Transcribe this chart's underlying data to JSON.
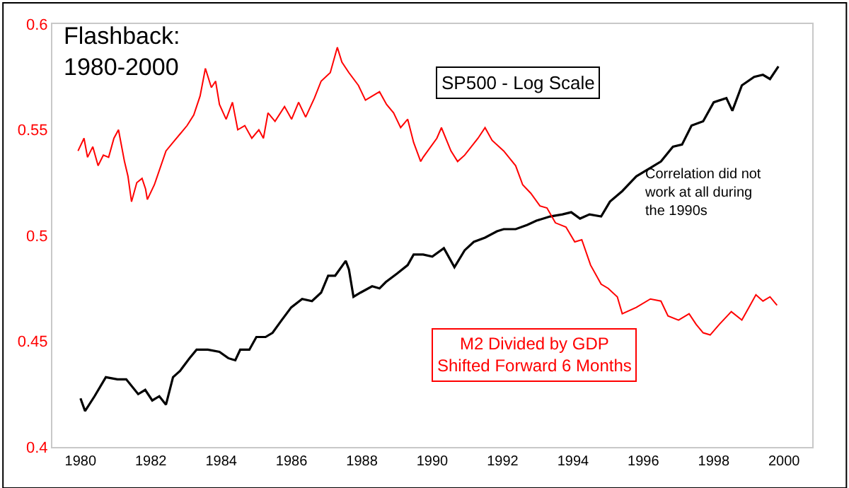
{
  "chart_data": {
    "type": "line",
    "title": "Flashback:\n1980-2000",
    "xlim": [
      1979.2,
      2000.8
    ],
    "xticks": [
      1980,
      1982,
      1984,
      1986,
      1988,
      1990,
      1992,
      1994,
      1996,
      1998,
      2000
    ],
    "ylim": [
      0.4,
      0.6
    ],
    "yticks": [
      0.4,
      0.45,
      0.5,
      0.55,
      0.6
    ],
    "legend": false,
    "marker": "none",
    "line_style": "solid",
    "annotations": [
      "Correlation did not\nwork at all during\nthe 1990s"
    ],
    "series": [
      {
        "name": "SP500 - Log Scale",
        "color": "#000000",
        "x": [
          1980.0,
          1980.13,
          1980.4,
          1980.72,
          1981.05,
          1981.3,
          1981.64,
          1981.84,
          1982.04,
          1982.24,
          1982.43,
          1982.63,
          1982.83,
          1983.1,
          1983.3,
          1983.62,
          1983.95,
          1984.2,
          1984.4,
          1984.54,
          1984.8,
          1985.0,
          1985.26,
          1985.46,
          1985.72,
          1985.99,
          1986.3,
          1986.58,
          1986.84,
          1987.04,
          1987.24,
          1987.54,
          1987.63,
          1987.76,
          1987.96,
          1988.29,
          1988.5,
          1988.68,
          1989.0,
          1989.3,
          1989.47,
          1989.74,
          1990.0,
          1990.33,
          1990.63,
          1990.92,
          1991.18,
          1991.5,
          1991.84,
          1992.03,
          1992.37,
          1992.7,
          1992.96,
          1993.35,
          1993.7,
          1993.95,
          1994.2,
          1994.47,
          1994.8,
          1995.05,
          1995.4,
          1995.8,
          1996.2,
          1996.5,
          1996.84,
          1997.1,
          1997.37,
          1997.7,
          1998.0,
          1998.36,
          1998.53,
          1998.8,
          1999.15,
          1999.4,
          1999.6,
          1999.84
        ],
        "values": [
          0.423,
          0.417,
          0.424,
          0.433,
          0.432,
          0.432,
          0.425,
          0.427,
          0.422,
          0.424,
          0.42,
          0.433,
          0.436,
          0.442,
          0.446,
          0.446,
          0.445,
          0.442,
          0.441,
          0.446,
          0.446,
          0.452,
          0.452,
          0.454,
          0.46,
          0.466,
          0.47,
          0.469,
          0.473,
          0.481,
          0.481,
          0.488,
          0.484,
          0.471,
          0.473,
          0.476,
          0.475,
          0.478,
          0.482,
          0.486,
          0.491,
          0.491,
          0.49,
          0.494,
          0.485,
          0.493,
          0.497,
          0.499,
          0.502,
          0.503,
          0.503,
          0.505,
          0.507,
          0.509,
          0.51,
          0.511,
          0.508,
          0.51,
          0.509,
          0.516,
          0.521,
          0.528,
          0.532,
          0.535,
          0.542,
          0.543,
          0.552,
          0.554,
          0.563,
          0.565,
          0.559,
          0.571,
          0.575,
          0.576,
          0.574,
          0.58
        ]
      },
      {
        "name": "M2 Divided by GDP\nShifted Forward 6 Months",
        "color": "#ff0000",
        "x": [
          1979.93,
          1980.1,
          1980.2,
          1980.35,
          1980.5,
          1980.65,
          1980.8,
          1980.95,
          1981.08,
          1981.25,
          1981.35,
          1981.45,
          1981.6,
          1981.75,
          1981.85,
          1981.9,
          1982.1,
          1982.43,
          1982.63,
          1983.03,
          1983.22,
          1983.4,
          1983.55,
          1983.72,
          1983.84,
          1983.95,
          1984.14,
          1984.32,
          1984.47,
          1984.67,
          1984.87,
          1985.07,
          1985.2,
          1985.33,
          1985.53,
          1985.8,
          1986.0,
          1986.2,
          1986.4,
          1986.65,
          1986.84,
          1987.1,
          1987.3,
          1987.43,
          1987.63,
          1987.9,
          1988.1,
          1988.3,
          1988.5,
          1988.7,
          1988.9,
          1989.1,
          1989.3,
          1989.47,
          1989.67,
          1989.74,
          1990.13,
          1990.26,
          1990.53,
          1990.72,
          1990.92,
          1991.3,
          1991.5,
          1991.7,
          1992.03,
          1992.37,
          1992.57,
          1992.8,
          1993.06,
          1993.26,
          1993.5,
          1993.8,
          1994.05,
          1994.25,
          1994.5,
          1994.8,
          1995.0,
          1995.26,
          1995.4,
          1995.8,
          1996.2,
          1996.5,
          1996.7,
          1997.0,
          1997.3,
          1997.5,
          1997.7,
          1997.9,
          1998.16,
          1998.5,
          1998.8,
          1999.0,
          1999.2,
          1999.4,
          1999.6,
          1999.8
        ],
        "values": [
          0.54,
          0.546,
          0.537,
          0.542,
          0.533,
          0.538,
          0.537,
          0.546,
          0.55,
          0.535,
          0.528,
          0.516,
          0.525,
          0.527,
          0.522,
          0.517,
          0.524,
          0.54,
          0.544,
          0.552,
          0.557,
          0.566,
          0.579,
          0.57,
          0.573,
          0.562,
          0.555,
          0.563,
          0.55,
          0.552,
          0.546,
          0.55,
          0.546,
          0.558,
          0.554,
          0.561,
          0.555,
          0.563,
          0.556,
          0.565,
          0.573,
          0.577,
          0.589,
          0.582,
          0.577,
          0.571,
          0.564,
          0.566,
          0.568,
          0.562,
          0.558,
          0.551,
          0.555,
          0.544,
          0.535,
          0.537,
          0.546,
          0.551,
          0.54,
          0.535,
          0.538,
          0.546,
          0.551,
          0.545,
          0.54,
          0.533,
          0.524,
          0.52,
          0.514,
          0.513,
          0.506,
          0.504,
          0.497,
          0.498,
          0.486,
          0.477,
          0.475,
          0.471,
          0.463,
          0.466,
          0.47,
          0.469,
          0.462,
          0.46,
          0.463,
          0.458,
          0.454,
          0.453,
          0.458,
          0.464,
          0.46,
          0.466,
          0.472,
          0.469,
          0.471,
          0.467
        ]
      }
    ]
  }
}
